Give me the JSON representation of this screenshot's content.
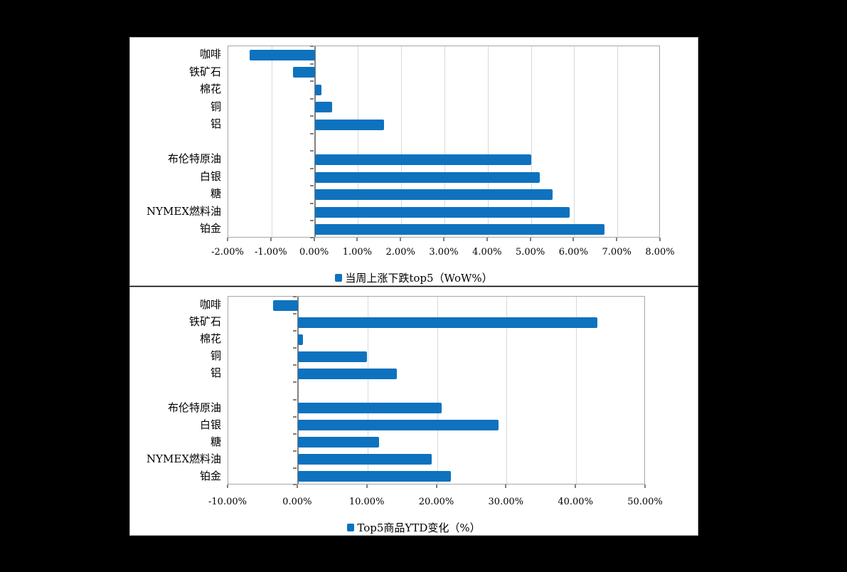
{
  "colors": {
    "background": "#000000",
    "panel": "#ffffff",
    "bar": "#0e72be",
    "gridline": "#d9d9d9",
    "plot_border": "#a6a6a6",
    "axis": "#808080",
    "text": "#000000"
  },
  "chart_data": [
    {
      "type": "bar",
      "orientation": "horizontal",
      "legend": "当周上涨下跌top5（WoW%）",
      "legend_position": "bottom",
      "grid": true,
      "unit": "%",
      "categories": [
        "咖啡",
        "铁矿石",
        "棉花",
        "铜",
        "铝",
        "",
        "布伦特原油",
        "白银",
        "糖",
        "NYMEX燃料油",
        "铂金"
      ],
      "values": [
        -1.5,
        -0.5,
        0.15,
        0.4,
        1.6,
        null,
        5.0,
        5.2,
        5.5,
        5.9,
        6.7
      ],
      "xlim": [
        -2,
        8
      ],
      "xtick_step": 1,
      "xtick_values": [
        -2,
        -1,
        0,
        1,
        2,
        3,
        4,
        5,
        6,
        7,
        8
      ],
      "xtick_labels": [
        "-2.00%",
        "-1.00%",
        "0.00%",
        "1.00%",
        "2.00%",
        "3.00%",
        "4.00%",
        "5.00%",
        "6.00%",
        "7.00%",
        "8.00%"
      ]
    },
    {
      "type": "bar",
      "orientation": "horizontal",
      "legend": "Top5商品YTD变化（%）",
      "legend_position": "bottom",
      "grid": true,
      "unit": "%",
      "categories": [
        "咖啡",
        "铁矿石",
        "棉花",
        "铜",
        "铝",
        "",
        "布伦特原油",
        "白银",
        "糖",
        "NYMEX燃料油",
        "铂金"
      ],
      "values": [
        -3.6,
        43.0,
        0.7,
        9.9,
        14.2,
        null,
        20.7,
        28.8,
        11.7,
        19.2,
        22.0
      ],
      "xlim": [
        -10,
        50
      ],
      "xtick_step": 10,
      "xtick_values": [
        -10,
        0,
        10,
        20,
        30,
        40,
        50
      ],
      "xtick_labels": [
        "-10.00%",
        "0.00%",
        "10.00%",
        "20.00%",
        "30.00%",
        "40.00%",
        "50.00%"
      ]
    }
  ]
}
